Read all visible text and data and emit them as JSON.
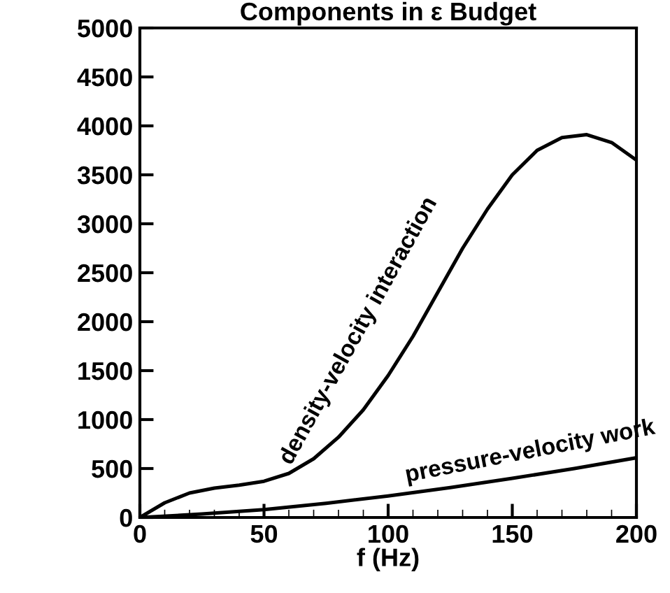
{
  "chart_data": {
    "type": "line",
    "title": "Components in ε Budget",
    "xlabel": "f (Hz)",
    "xlim": [
      0,
      200
    ],
    "xticks": [
      0,
      50,
      100,
      150,
      200
    ],
    "ylim": [
      0,
      5000
    ],
    "yticks": [
      0,
      500,
      1000,
      1500,
      2000,
      2500,
      3000,
      3500,
      4000,
      4500,
      5000
    ],
    "grid": false,
    "legend": false,
    "marker": "none",
    "line_style": "solid",
    "series": [
      {
        "name": "density-velocity interaction",
        "color": "#000000",
        "x": [
          0,
          10,
          20,
          30,
          40,
          50,
          60,
          70,
          80,
          90,
          100,
          110,
          120,
          130,
          140,
          150,
          160,
          170,
          180,
          190,
          200
        ],
        "values": [
          0,
          150,
          250,
          300,
          330,
          370,
          450,
          600,
          820,
          1100,
          1450,
          1850,
          2300,
          2750,
          3150,
          3500,
          3750,
          3880,
          3910,
          3830,
          3650
        ]
      },
      {
        "name": "pressure-velocity work",
        "color": "#000000",
        "x": [
          0,
          25,
          50,
          75,
          100,
          125,
          150,
          175,
          200
        ],
        "values": [
          0,
          35,
          80,
          145,
          220,
          305,
          400,
          500,
          610
        ]
      }
    ]
  }
}
